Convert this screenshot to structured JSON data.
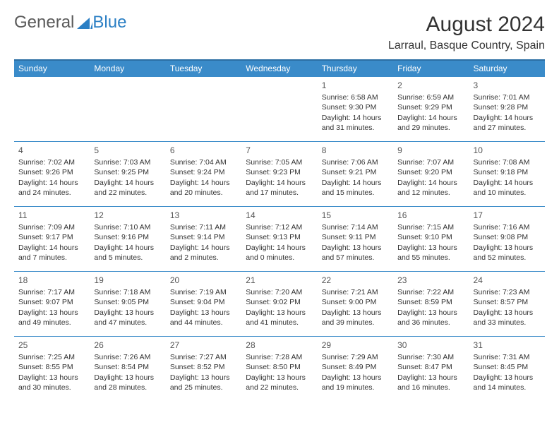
{
  "logo": {
    "text1": "General",
    "text2": "Blue"
  },
  "title": "August 2024",
  "location": "Larraul, Basque Country, Spain",
  "colors": {
    "header_bg": "#3a8bc9",
    "header_border": "#2b6ea3",
    "cell_border": "#3a8bc9",
    "text": "#333333",
    "logo_blue": "#2b7fc4",
    "logo_gray": "#5a5a5a"
  },
  "dayNames": [
    "Sunday",
    "Monday",
    "Tuesday",
    "Wednesday",
    "Thursday",
    "Friday",
    "Saturday"
  ],
  "weeks": [
    [
      null,
      null,
      null,
      null,
      {
        "n": "1",
        "sr": "6:58 AM",
        "ss": "9:30 PM",
        "dl": "14 hours and 31 minutes."
      },
      {
        "n": "2",
        "sr": "6:59 AM",
        "ss": "9:29 PM",
        "dl": "14 hours and 29 minutes."
      },
      {
        "n": "3",
        "sr": "7:01 AM",
        "ss": "9:28 PM",
        "dl": "14 hours and 27 minutes."
      }
    ],
    [
      {
        "n": "4",
        "sr": "7:02 AM",
        "ss": "9:26 PM",
        "dl": "14 hours and 24 minutes."
      },
      {
        "n": "5",
        "sr": "7:03 AM",
        "ss": "9:25 PM",
        "dl": "14 hours and 22 minutes."
      },
      {
        "n": "6",
        "sr": "7:04 AM",
        "ss": "9:24 PM",
        "dl": "14 hours and 20 minutes."
      },
      {
        "n": "7",
        "sr": "7:05 AM",
        "ss": "9:23 PM",
        "dl": "14 hours and 17 minutes."
      },
      {
        "n": "8",
        "sr": "7:06 AM",
        "ss": "9:21 PM",
        "dl": "14 hours and 15 minutes."
      },
      {
        "n": "9",
        "sr": "7:07 AM",
        "ss": "9:20 PM",
        "dl": "14 hours and 12 minutes."
      },
      {
        "n": "10",
        "sr": "7:08 AM",
        "ss": "9:18 PM",
        "dl": "14 hours and 10 minutes."
      }
    ],
    [
      {
        "n": "11",
        "sr": "7:09 AM",
        "ss": "9:17 PM",
        "dl": "14 hours and 7 minutes."
      },
      {
        "n": "12",
        "sr": "7:10 AM",
        "ss": "9:16 PM",
        "dl": "14 hours and 5 minutes."
      },
      {
        "n": "13",
        "sr": "7:11 AM",
        "ss": "9:14 PM",
        "dl": "14 hours and 2 minutes."
      },
      {
        "n": "14",
        "sr": "7:12 AM",
        "ss": "9:13 PM",
        "dl": "14 hours and 0 minutes."
      },
      {
        "n": "15",
        "sr": "7:14 AM",
        "ss": "9:11 PM",
        "dl": "13 hours and 57 minutes."
      },
      {
        "n": "16",
        "sr": "7:15 AM",
        "ss": "9:10 PM",
        "dl": "13 hours and 55 minutes."
      },
      {
        "n": "17",
        "sr": "7:16 AM",
        "ss": "9:08 PM",
        "dl": "13 hours and 52 minutes."
      }
    ],
    [
      {
        "n": "18",
        "sr": "7:17 AM",
        "ss": "9:07 PM",
        "dl": "13 hours and 49 minutes."
      },
      {
        "n": "19",
        "sr": "7:18 AM",
        "ss": "9:05 PM",
        "dl": "13 hours and 47 minutes."
      },
      {
        "n": "20",
        "sr": "7:19 AM",
        "ss": "9:04 PM",
        "dl": "13 hours and 44 minutes."
      },
      {
        "n": "21",
        "sr": "7:20 AM",
        "ss": "9:02 PM",
        "dl": "13 hours and 41 minutes."
      },
      {
        "n": "22",
        "sr": "7:21 AM",
        "ss": "9:00 PM",
        "dl": "13 hours and 39 minutes."
      },
      {
        "n": "23",
        "sr": "7:22 AM",
        "ss": "8:59 PM",
        "dl": "13 hours and 36 minutes."
      },
      {
        "n": "24",
        "sr": "7:23 AM",
        "ss": "8:57 PM",
        "dl": "13 hours and 33 minutes."
      }
    ],
    [
      {
        "n": "25",
        "sr": "7:25 AM",
        "ss": "8:55 PM",
        "dl": "13 hours and 30 minutes."
      },
      {
        "n": "26",
        "sr": "7:26 AM",
        "ss": "8:54 PM",
        "dl": "13 hours and 28 minutes."
      },
      {
        "n": "27",
        "sr": "7:27 AM",
        "ss": "8:52 PM",
        "dl": "13 hours and 25 minutes."
      },
      {
        "n": "28",
        "sr": "7:28 AM",
        "ss": "8:50 PM",
        "dl": "13 hours and 22 minutes."
      },
      {
        "n": "29",
        "sr": "7:29 AM",
        "ss": "8:49 PM",
        "dl": "13 hours and 19 minutes."
      },
      {
        "n": "30",
        "sr": "7:30 AM",
        "ss": "8:47 PM",
        "dl": "13 hours and 16 minutes."
      },
      {
        "n": "31",
        "sr": "7:31 AM",
        "ss": "8:45 PM",
        "dl": "13 hours and 14 minutes."
      }
    ]
  ],
  "labels": {
    "sunrise": "Sunrise: ",
    "sunset": "Sunset: ",
    "daylight": "Daylight: "
  }
}
